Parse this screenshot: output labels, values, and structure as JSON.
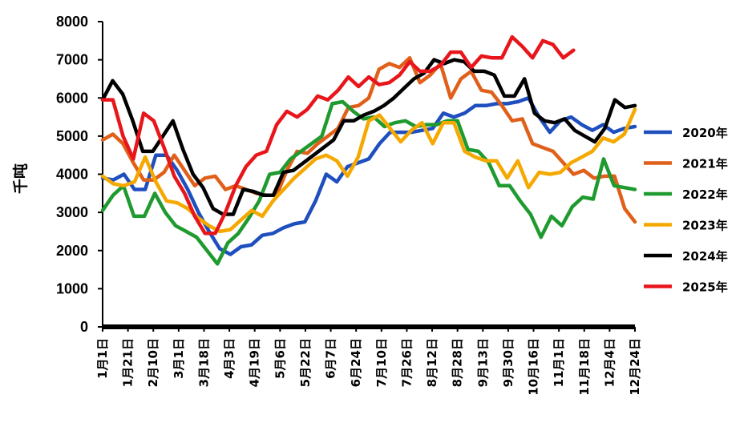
{
  "chart_data": {
    "type": "line",
    "title": "",
    "xlabel": "",
    "ylabel": "千吨",
    "ylim": [
      0,
      8000
    ],
    "yticks": [
      0,
      1000,
      2000,
      3000,
      4000,
      5000,
      6000,
      7000,
      8000
    ],
    "grid": false,
    "legend_position": "right",
    "x_tick_labels": [
      "1月1日",
      "1月21日",
      "2月10日",
      "3月1日",
      "3月18日",
      "4月3日",
      "4月19日",
      "5月6日",
      "5月22日",
      "6月7日",
      "6月24日",
      "7月10日",
      "7月26日",
      "8月12日",
      "8月28日",
      "9月13日",
      "9月30日",
      "10月16日",
      "11月1日",
      "11月18日",
      "12月4日",
      "12月24日"
    ],
    "x_tick_positions": [
      0,
      2.2,
      4.4,
      6.6,
      8.8,
      11,
      13.2,
      15.4,
      17.6,
      19.8,
      22,
      24.2,
      26.4,
      28.6,
      30.8,
      33,
      35.2,
      37.4,
      39.6,
      41.8,
      44,
      46.2
    ],
    "x_max": 46.2,
    "series": [
      {
        "name": "2020年",
        "color": "#1f4fbf",
        "values": [
          3900,
          3850,
          4000,
          3600,
          3600,
          4500,
          4500,
          4100,
          3600,
          3000,
          2500,
          2050,
          1900,
          2100,
          2150,
          2400,
          2450,
          2600,
          2700,
          2750,
          3300,
          4000,
          3800,
          4200,
          4300,
          4400,
          4800,
          5100,
          5100,
          5100,
          5150,
          5200,
          5600,
          5500,
          5600,
          5800,
          5800,
          5850,
          5850,
          5900,
          6000,
          5500,
          5100,
          5400,
          5500,
          5300,
          5150,
          5300,
          5100,
          5200,
          5250
        ]
      },
      {
        "name": "2021年",
        "color": "#e0601a",
        "values": [
          4900,
          5050,
          4800,
          4300,
          3850,
          3850,
          4050,
          4500,
          4100,
          3700,
          3900,
          3950,
          3600,
          3700,
          3600,
          3500,
          3450,
          3450,
          4100,
          4600,
          4550,
          4800,
          5000,
          5200,
          5750,
          5800,
          6000,
          6750,
          6900,
          6800,
          7050,
          6400,
          6600,
          6900,
          6000,
          6500,
          6700,
          6200,
          6150,
          5800,
          5400,
          5450,
          4800,
          4700,
          4600,
          4300,
          4000,
          4100,
          3900,
          3950,
          3950,
          3100,
          2750
        ]
      },
      {
        "name": "2022年",
        "color": "#1f9a2e",
        "values": [
          3050,
          3450,
          3700,
          2900,
          2900,
          3500,
          3000,
          2650,
          2500,
          2350,
          2000,
          1650,
          2200,
          2450,
          2850,
          3300,
          4000,
          4050,
          4400,
          4600,
          4800,
          5000,
          5850,
          5900,
          5650,
          5450,
          5500,
          5250,
          5350,
          5400,
          5250,
          5300,
          5300,
          5400,
          5400,
          4650,
          4600,
          4300,
          3700,
          3700,
          3300,
          2950,
          2350,
          2900,
          2650,
          3150,
          3400,
          3350,
          4400,
          3700,
          3650,
          3600
        ]
      },
      {
        "name": "2023年",
        "color": "#f5a800",
        "values": [
          3950,
          3750,
          3700,
          3800,
          4450,
          3800,
          3300,
          3250,
          3100,
          2850,
          2650,
          2500,
          2550,
          2800,
          3050,
          2900,
          3300,
          3600,
          3900,
          4150,
          4400,
          4500,
          4350,
          3950,
          4450,
          5400,
          5550,
          5200,
          4850,
          5150,
          5350,
          4800,
          5350,
          5350,
          4600,
          4450,
          4350,
          4350,
          3900,
          4350,
          3650,
          4050,
          4000,
          4050,
          4300,
          4450,
          4600,
          4950,
          4850,
          5050,
          5700
        ]
      },
      {
        "name": "2024年",
        "color": "#000000",
        "values": [
          5950,
          6450,
          6100,
          5400,
          4600,
          4600,
          5000,
          5400,
          4650,
          4000,
          3650,
          3100,
          2950,
          2950,
          3600,
          3550,
          3450,
          3450,
          4050,
          4100,
          4300,
          4500,
          4700,
          4900,
          5400,
          5400,
          5550,
          5650,
          5800,
          6000,
          6250,
          6500,
          6650,
          7000,
          6900,
          7000,
          6950,
          6700,
          6700,
          6600,
          6050,
          6050,
          6500,
          5600,
          5400,
          5350,
          5450,
          5150,
          5000,
          4850,
          5200,
          5950,
          5750,
          5800
        ]
      },
      {
        "name": "2025年",
        "color": "#e8161b",
        "values": [
          5950,
          5950,
          5000,
          4400,
          5600,
          5400,
          4700,
          3950,
          3500,
          2900,
          2450,
          2450,
          3000,
          3700,
          4200,
          4500,
          4600,
          5300,
          5650,
          5500,
          5700,
          6050,
          5950,
          6200,
          6550,
          6300,
          6550,
          6350,
          6400,
          6600,
          6950,
          6700,
          6700,
          6850,
          7200,
          7200,
          6800,
          7100,
          7050,
          7050,
          7600,
          7350,
          7050,
          7500,
          7400,
          7050,
          7250
        ]
      }
    ]
  }
}
